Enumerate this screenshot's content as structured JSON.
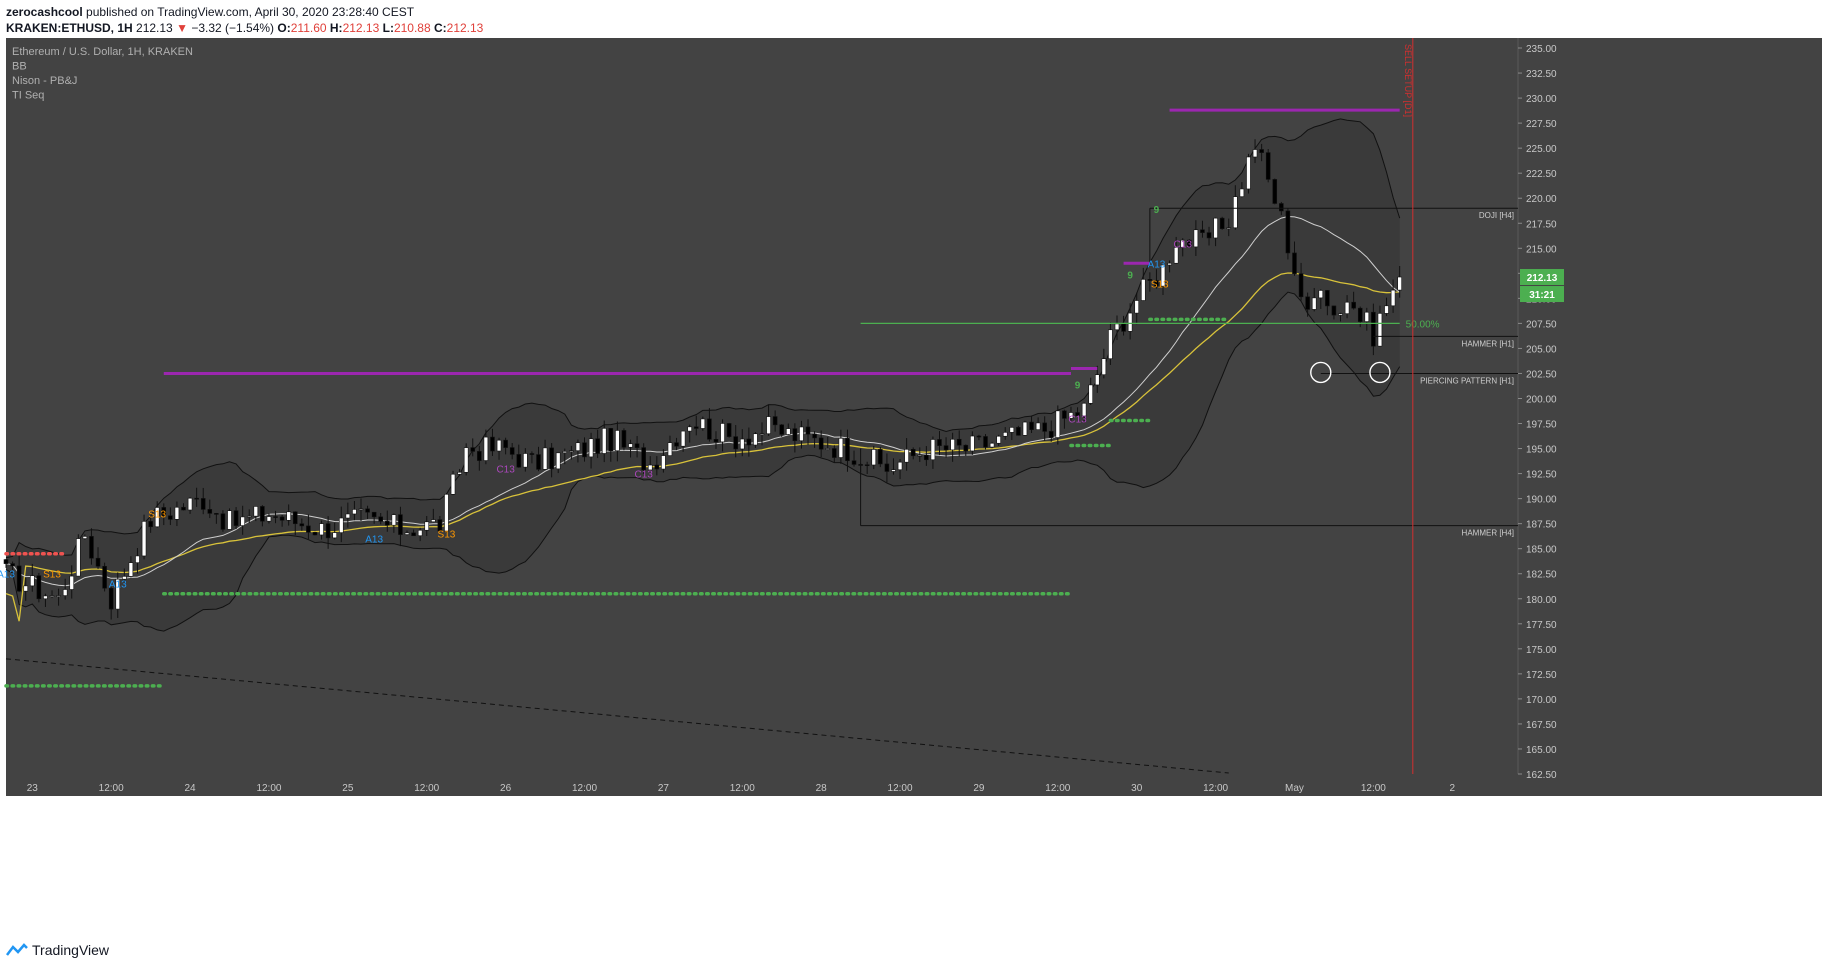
{
  "header": {
    "author": "zerocashcool",
    "published_text": "published on TradingView.com, April 30, 2020 23:28:40 CEST",
    "symbol_text": "KRAKEN:ETHUSD, 1H",
    "last": "212.13",
    "change": "−3.32 (−1.54%)",
    "o_label": "O:",
    "o": "211.60",
    "h_label": "H:",
    "h": "212.13",
    "l_label": "L:",
    "l": "210.88",
    "c_label": "C:",
    "c": "212.13"
  },
  "legend": [
    "Ethereum / U.S. Dollar, 1H, KRAKEN",
    "BB",
    "Nison - PB&J",
    "TI Seq"
  ],
  "price_badge": "212.13",
  "countdown_badge": "31:21",
  "footer_brand": "TradingView",
  "colors": {
    "background": "#434343",
    "up_candle": "#ffffff",
    "down_candle": "#000000",
    "ema": "#d8c23a",
    "sma": "#cfcfcf",
    "purple": "#9c27b0",
    "green_dots": "#4caf50",
    "red_dots": "#ef5350",
    "fib": "#4caf50",
    "sell_setup": "#d32f2f",
    "price_badge": "#4caf50"
  },
  "chart_data": {
    "type": "candlestick",
    "y_axis": {
      "min": 162.5,
      "max": 236,
      "ticks": [
        "235.00",
        "232.50",
        "230.00",
        "227.50",
        "225.00",
        "222.50",
        "220.00",
        "217.50",
        "215.00",
        "212.50",
        "210.00",
        "207.50",
        "205.00",
        "202.50",
        "200.00",
        "197.50",
        "195.00",
        "192.50",
        "190.00",
        "187.50",
        "185.00",
        "182.50",
        "180.00",
        "177.50",
        "175.00",
        "172.50",
        "170.00",
        "167.50",
        "165.00",
        "162.50"
      ]
    },
    "x_axis": {
      "start": "2020-04-22 20:00",
      "end": "2020-05-02 10:00",
      "ticks": [
        "23",
        "12:00",
        "24",
        "12:00",
        "25",
        "12:00",
        "26",
        "12:00",
        "27",
        "12:00",
        "28",
        "12:00",
        "29",
        "12:00",
        "30",
        "12:00",
        "May",
        "12:00",
        "2"
      ]
    },
    "price_path": [
      [
        "2020-04-22 20:00",
        182.5
      ],
      [
        "2020-04-23 04:00",
        180.0
      ],
      [
        "2020-04-23 08:00",
        186.5
      ],
      [
        "2020-04-23 12:00",
        180.0
      ],
      [
        "2020-04-23 16:00",
        185.5
      ],
      [
        "2020-04-23 18:00",
        188.0
      ],
      [
        "2020-04-23 22:00",
        189.0
      ],
      [
        "2020-04-24 02:00",
        190.0
      ],
      [
        "2020-04-24 06:00",
        187.5
      ],
      [
        "2020-04-24 12:00",
        188.5
      ],
      [
        "2020-04-24 20:00",
        187.0
      ],
      [
        "2020-04-25 02:00",
        188.0
      ],
      [
        "2020-04-25 08:00",
        187.0
      ],
      [
        "2020-04-25 14:00",
        187.5
      ],
      [
        "2020-04-25 18:00",
        195.0
      ],
      [
        "2020-04-26 00:00",
        195.0
      ],
      [
        "2020-04-26 04:00",
        193.5
      ],
      [
        "2020-04-26 10:00",
        194.5
      ],
      [
        "2020-04-26 16:00",
        196.0
      ],
      [
        "2020-04-26 22:00",
        193.5
      ],
      [
        "2020-04-27 04:00",
        198.0
      ],
      [
        "2020-04-27 10:00",
        196.0
      ],
      [
        "2020-04-27 16:00",
        197.0
      ],
      [
        "2020-04-27 22:00",
        196.0
      ],
      [
        "2020-04-28 04:00",
        195.0
      ],
      [
        "2020-04-28 10:00",
        193.0
      ],
      [
        "2020-04-28 16:00",
        195.0
      ],
      [
        "2020-04-28 22:00",
        195.0
      ],
      [
        "2020-04-29 04:00",
        196.0
      ],
      [
        "2020-04-29 10:00",
        197.0
      ],
      [
        "2020-04-29 16:00",
        199.0
      ],
      [
        "2020-04-29 20:00",
        206.0
      ],
      [
        "2020-04-30 00:00",
        210.0
      ],
      [
        "2020-04-30 04:00",
        213.0
      ],
      [
        "2020-04-30 06:00",
        216.0
      ],
      [
        "2020-04-30 10:00",
        215.5
      ],
      [
        "2020-04-30 14:00",
        218.0
      ],
      [
        "2020-04-30 18:00",
        225.5
      ],
      [
        "2020-04-30 22:00",
        218.0
      ],
      [
        "2020-05-01 02:00",
        208.0
      ],
      [
        "2020-05-01 04:00",
        212.0
      ],
      [
        "2020-05-01 06:00",
        208.5
      ],
      [
        "2020-05-01 08:00",
        210.0
      ],
      [
        "2020-05-01 12:00",
        206.5
      ],
      [
        "2020-05-01 14:00",
        209.5
      ],
      [
        "2020-05-01 16:00",
        212.13
      ]
    ],
    "lines": [
      {
        "label": "DOJI [H4]",
        "price": 219.0,
        "from": "2020-04-30 02:00"
      },
      {
        "label": "HAMMER [H1]",
        "price": 206.2,
        "from": "2020-05-01 12:00"
      },
      {
        "label": "PIERCING PATTERN [H1]",
        "price": 202.5,
        "from": "2020-05-01 04:00"
      },
      {
        "label": "HAMMER [H4]",
        "price": 187.3,
        "from": "2020-04-28 06:00"
      },
      {
        "label": "50.00%",
        "price": 207.5,
        "from": "2020-04-28 06:00",
        "to": "2020-05-01 16:00"
      }
    ],
    "sell_setup": {
      "label": "SELL SETUP [D1]",
      "time": "2020-05-01 18:00"
    },
    "annotations": [
      {
        "text": "A13",
        "time": "2020-04-22 20:00",
        "price": 182.5,
        "color": "#2196f3"
      },
      {
        "text": "S13",
        "time": "2020-04-23 03:00",
        "price": 182.5,
        "color": "#ff9800"
      },
      {
        "text": "A13",
        "time": "2020-04-23 13:00",
        "price": 181.5,
        "color": "#2196f3"
      },
      {
        "text": "S13",
        "time": "2020-04-23 19:00",
        "price": 188.5,
        "color": "#ff9800"
      },
      {
        "text": "A13",
        "time": "2020-04-25 04:00",
        "price": 186.0,
        "color": "#2196f3"
      },
      {
        "text": "S13",
        "time": "2020-04-25 15:00",
        "price": 186.5,
        "color": "#ff9800"
      },
      {
        "text": "C13",
        "time": "2020-04-26 00:00",
        "price": 193.0,
        "color": "#ab47bc"
      },
      {
        "text": "C13",
        "time": "2020-04-26 21:00",
        "price": 192.5,
        "color": "#ab47bc"
      },
      {
        "text": "C13",
        "time": "2020-04-29 15:00",
        "price": 198.0,
        "color": "#ab47bc"
      },
      {
        "text": "A13",
        "time": "2020-04-30 03:00",
        "price": 213.5,
        "color": "#2196f3"
      },
      {
        "text": "S13",
        "time": "2020-04-30 03:30",
        "price": 211.5,
        "color": "#ff9800"
      },
      {
        "text": "C13",
        "time": "2020-04-30 07:00",
        "price": 215.5,
        "color": "#ab47bc"
      }
    ],
    "nines": [
      {
        "text": "9",
        "time": "2020-04-29 15:00",
        "price": 201.0,
        "color": "#4caf50"
      },
      {
        "text": "9",
        "time": "2020-04-29 23:00",
        "price": 212.0,
        "color": "#4caf50"
      },
      {
        "text": "9",
        "time": "2020-04-30 03:00",
        "price": 218.5,
        "color": "#4caf50"
      }
    ],
    "purple_levels": [
      {
        "price": 202.5,
        "from": "2020-04-23 20:00",
        "to": "2020-04-29 14:00"
      },
      {
        "price": 203.0,
        "from": "2020-04-29 14:00",
        "to": "2020-04-29 18:00"
      },
      {
        "price": 213.5,
        "from": "2020-04-29 22:00",
        "to": "2020-04-30 02:00"
      },
      {
        "price": 228.8,
        "from": "2020-04-30 05:00",
        "to": "2020-05-01 16:00"
      }
    ],
    "green_dot_levels": [
      {
        "price": 180.5,
        "from": "2020-04-23 20:00",
        "to": "2020-04-29 14:00"
      },
      {
        "price": 171.3,
        "from": "2020-04-22 20:00",
        "to": "2020-04-23 20:00"
      },
      {
        "price": 195.3,
        "from": "2020-04-29 14:00",
        "to": "2020-04-29 20:00"
      },
      {
        "price": 197.8,
        "from": "2020-04-29 20:00",
        "to": "2020-04-30 02:00"
      },
      {
        "price": 207.9,
        "from": "2020-04-30 02:00",
        "to": "2020-04-30 14:00"
      }
    ],
    "red_dot_levels": [
      {
        "price": 184.5,
        "from": "2020-04-22 20:00",
        "to": "2020-04-23 05:00"
      }
    ]
  }
}
